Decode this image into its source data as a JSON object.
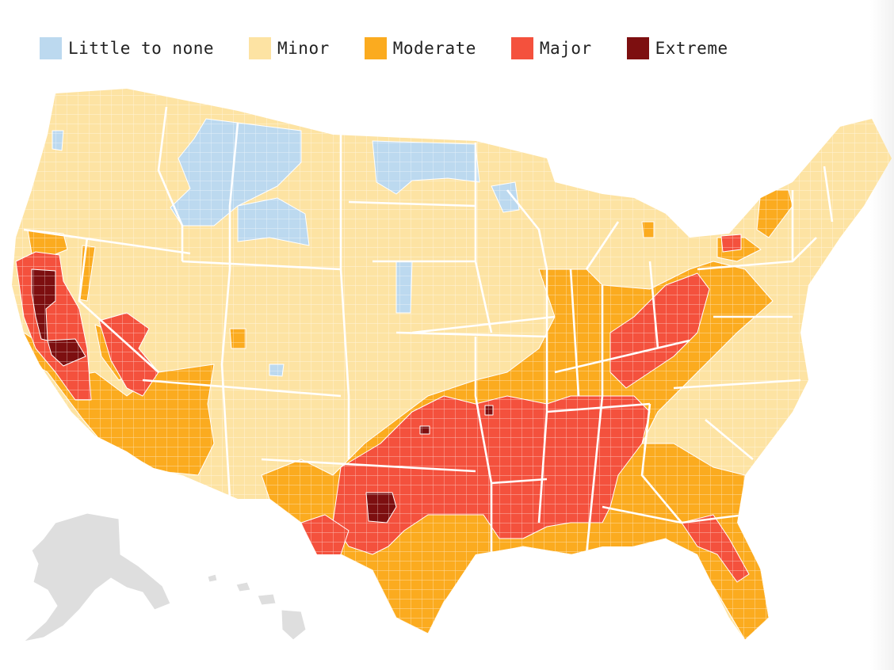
{
  "legend": {
    "items": [
      {
        "label": "Little to none",
        "color": "#bcd9ef"
      },
      {
        "label": "Minor",
        "color": "#fde3a3"
      },
      {
        "label": "Moderate",
        "color": "#fbab1f"
      },
      {
        "label": "Major",
        "color": "#f4513d"
      },
      {
        "label": "Extreme",
        "color": "#7d0f10"
      }
    ]
  },
  "map": {
    "background_color": "#ffffff",
    "inset_color": "#dedede"
  }
}
